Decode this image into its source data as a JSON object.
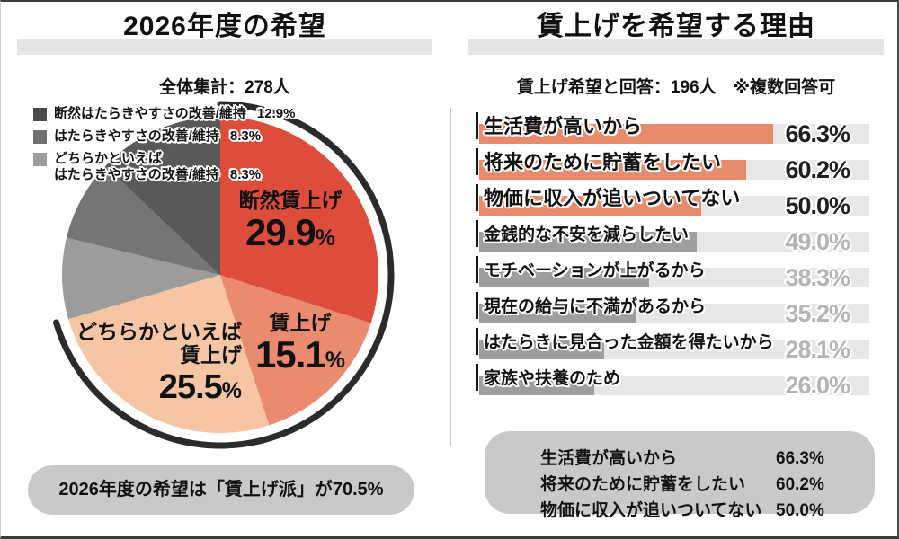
{
  "colors": {
    "pie_red": "#de4c3b",
    "pie_salmon": "#ea8a6e",
    "pie_peach": "#f6c5a3",
    "pie_gray_light": "#9c9c9c",
    "pie_gray_mid": "#757575",
    "pie_gray_dark": "#595959",
    "legend_dark": "#4b4b4b",
    "legend_mid": "#707070",
    "legend_light": "#9d9d9d",
    "bar_highlight": "#e88b6d",
    "bar_normal": "#9e9e9e",
    "bar_track": "#e7e7e7",
    "arc": "#2b2b2b",
    "pill_bg": "#c9c9c9",
    "title_band": "#e5e5e5"
  },
  "left_panel": {
    "title": "2026年度の希望",
    "subtitle": "全体集計：278人",
    "legend": [
      {
        "line1": "断然はたらきやすさの改善/維持",
        "line2": "",
        "value": "12.9%",
        "color": "#4b4b4b"
      },
      {
        "line1": "はたらきやすさの改善/維持",
        "line2": "",
        "value": "8.3%",
        "color": "#707070"
      },
      {
        "line1": "どちらかといえば",
        "line2": "はたらきやすさの改善/維持",
        "value": "8.3%",
        "color": "#9d9d9d"
      }
    ],
    "pie_labels": [
      {
        "name": "断然賃上げ",
        "value": "29.9",
        "unit": "%"
      },
      {
        "name": "賃上げ",
        "value": "15.1",
        "unit": "%"
      },
      {
        "name_line1": "どちらかといえば",
        "name_line2": "賃上げ",
        "value": "25.5",
        "unit": "%"
      }
    ],
    "footer": "2026年度の希望は「賃上げ派」が70.5%"
  },
  "right_panel": {
    "title": "賃上げを希望する理由",
    "subtitle": "賃上げ希望と回答：196人　※複数回答可",
    "bars": [
      {
        "label": "生活費が高いから",
        "value": 66.3,
        "display": "66.3%",
        "highlight": true
      },
      {
        "label": "将来のために貯蓄をしたい",
        "value": 60.2,
        "display": "60.2%",
        "highlight": true
      },
      {
        "label": "物価に収入が追いついてない",
        "value": 50.0,
        "display": "50.0%",
        "highlight": true
      },
      {
        "label": "金銭的な不安を減らしたい",
        "value": 49.0,
        "display": "49.0%",
        "highlight": false
      },
      {
        "label": "モチベーションが上がるから",
        "value": 38.3,
        "display": "38.3%",
        "highlight": false
      },
      {
        "label": "現在の給与に不満があるから",
        "value": 35.2,
        "display": "35.2%",
        "highlight": false
      },
      {
        "label": "はたらきに見合った金額を得たいから",
        "value": 28.1,
        "display": "28.1%",
        "highlight": false
      },
      {
        "label": "家族や扶養のため",
        "value": 26.0,
        "display": "26.0%",
        "highlight": false
      }
    ],
    "summary": [
      {
        "label": "生活費が高いから",
        "value": "66.3%"
      },
      {
        "label": "将来のために貯蓄をしたい",
        "value": "60.2%"
      },
      {
        "label": "物価に収入が追いついてない",
        "value": "50.0%"
      }
    ]
  },
  "chart_data": [
    {
      "type": "pie",
      "title": "2026年度の希望",
      "subtitle": "全体集計：278人",
      "labels": [
        "断然賃上げ",
        "賃上げ",
        "どちらかといえば賃上げ",
        "どちらかといえば はたらきやすさの改善/維持",
        "はたらきやすさの改善/維持",
        "断然はたらきやすさの改善/維持"
      ],
      "values": [
        29.9,
        15.1,
        25.5,
        8.3,
        8.3,
        12.9
      ],
      "colors": [
        "#de4c3b",
        "#ea8a6e",
        "#f6c5a3",
        "#9c9c9c",
        "#757575",
        "#595959"
      ],
      "start": "top",
      "direction": "clockwise",
      "highlight_arc_percent": 70.5,
      "annotation": "2026年度の希望は「賃上げ派」が70.5%"
    },
    {
      "type": "bar",
      "orientation": "horizontal",
      "title": "賃上げを希望する理由",
      "subtitle": "賃上げ希望と回答：196人 ※複数回答可",
      "categories": [
        "生活費が高いから",
        "将来のために貯蓄をしたい",
        "物価に収入が追いついてない",
        "金銭的な不安を減らしたい",
        "モチベーションが上がるから",
        "現在の給与に不満があるから",
        "はたらきに見合った金額を得たいから",
        "家族や扶養のため"
      ],
      "values": [
        66.3,
        60.2,
        50.0,
        49.0,
        38.3,
        35.2,
        28.1,
        26.0
      ],
      "highlighted": [
        true,
        true,
        true,
        false,
        false,
        false,
        false,
        false
      ],
      "xlim": [
        0,
        88
      ],
      "grid": false,
      "legend_position": "none"
    }
  ]
}
